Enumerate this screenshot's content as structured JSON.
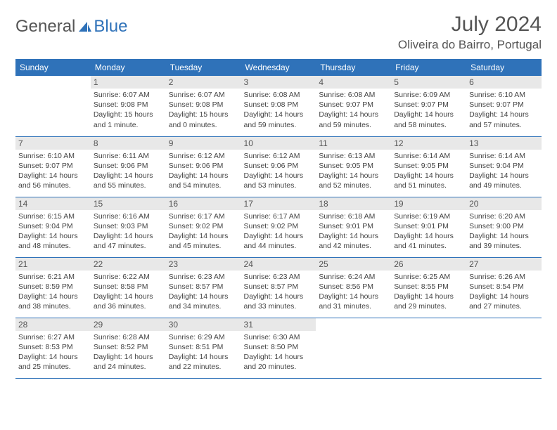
{
  "brand": {
    "name1": "General",
    "name2": "Blue"
  },
  "title": {
    "month": "July 2024",
    "location": "Oliveira do Bairro, Portugal"
  },
  "colors": {
    "accent": "#2f72b9",
    "daybar": "#e8e8e8",
    "text": "#555"
  },
  "days_of_week": [
    "Sunday",
    "Monday",
    "Tuesday",
    "Wednesday",
    "Thursday",
    "Friday",
    "Saturday"
  ],
  "weeks": [
    [
      {
        "n": "",
        "sr": "",
        "ss": "",
        "dl": ""
      },
      {
        "n": "1",
        "sr": "Sunrise: 6:07 AM",
        "ss": "Sunset: 9:08 PM",
        "dl": "Daylight: 15 hours and 1 minute."
      },
      {
        "n": "2",
        "sr": "Sunrise: 6:07 AM",
        "ss": "Sunset: 9:08 PM",
        "dl": "Daylight: 15 hours and 0 minutes."
      },
      {
        "n": "3",
        "sr": "Sunrise: 6:08 AM",
        "ss": "Sunset: 9:08 PM",
        "dl": "Daylight: 14 hours and 59 minutes."
      },
      {
        "n": "4",
        "sr": "Sunrise: 6:08 AM",
        "ss": "Sunset: 9:07 PM",
        "dl": "Daylight: 14 hours and 59 minutes."
      },
      {
        "n": "5",
        "sr": "Sunrise: 6:09 AM",
        "ss": "Sunset: 9:07 PM",
        "dl": "Daylight: 14 hours and 58 minutes."
      },
      {
        "n": "6",
        "sr": "Sunrise: 6:10 AM",
        "ss": "Sunset: 9:07 PM",
        "dl": "Daylight: 14 hours and 57 minutes."
      }
    ],
    [
      {
        "n": "7",
        "sr": "Sunrise: 6:10 AM",
        "ss": "Sunset: 9:07 PM",
        "dl": "Daylight: 14 hours and 56 minutes."
      },
      {
        "n": "8",
        "sr": "Sunrise: 6:11 AM",
        "ss": "Sunset: 9:06 PM",
        "dl": "Daylight: 14 hours and 55 minutes."
      },
      {
        "n": "9",
        "sr": "Sunrise: 6:12 AM",
        "ss": "Sunset: 9:06 PM",
        "dl": "Daylight: 14 hours and 54 minutes."
      },
      {
        "n": "10",
        "sr": "Sunrise: 6:12 AM",
        "ss": "Sunset: 9:06 PM",
        "dl": "Daylight: 14 hours and 53 minutes."
      },
      {
        "n": "11",
        "sr": "Sunrise: 6:13 AM",
        "ss": "Sunset: 9:05 PM",
        "dl": "Daylight: 14 hours and 52 minutes."
      },
      {
        "n": "12",
        "sr": "Sunrise: 6:14 AM",
        "ss": "Sunset: 9:05 PM",
        "dl": "Daylight: 14 hours and 51 minutes."
      },
      {
        "n": "13",
        "sr": "Sunrise: 6:14 AM",
        "ss": "Sunset: 9:04 PM",
        "dl": "Daylight: 14 hours and 49 minutes."
      }
    ],
    [
      {
        "n": "14",
        "sr": "Sunrise: 6:15 AM",
        "ss": "Sunset: 9:04 PM",
        "dl": "Daylight: 14 hours and 48 minutes."
      },
      {
        "n": "15",
        "sr": "Sunrise: 6:16 AM",
        "ss": "Sunset: 9:03 PM",
        "dl": "Daylight: 14 hours and 47 minutes."
      },
      {
        "n": "16",
        "sr": "Sunrise: 6:17 AM",
        "ss": "Sunset: 9:02 PM",
        "dl": "Daylight: 14 hours and 45 minutes."
      },
      {
        "n": "17",
        "sr": "Sunrise: 6:17 AM",
        "ss": "Sunset: 9:02 PM",
        "dl": "Daylight: 14 hours and 44 minutes."
      },
      {
        "n": "18",
        "sr": "Sunrise: 6:18 AM",
        "ss": "Sunset: 9:01 PM",
        "dl": "Daylight: 14 hours and 42 minutes."
      },
      {
        "n": "19",
        "sr": "Sunrise: 6:19 AM",
        "ss": "Sunset: 9:01 PM",
        "dl": "Daylight: 14 hours and 41 minutes."
      },
      {
        "n": "20",
        "sr": "Sunrise: 6:20 AM",
        "ss": "Sunset: 9:00 PM",
        "dl": "Daylight: 14 hours and 39 minutes."
      }
    ],
    [
      {
        "n": "21",
        "sr": "Sunrise: 6:21 AM",
        "ss": "Sunset: 8:59 PM",
        "dl": "Daylight: 14 hours and 38 minutes."
      },
      {
        "n": "22",
        "sr": "Sunrise: 6:22 AM",
        "ss": "Sunset: 8:58 PM",
        "dl": "Daylight: 14 hours and 36 minutes."
      },
      {
        "n": "23",
        "sr": "Sunrise: 6:23 AM",
        "ss": "Sunset: 8:57 PM",
        "dl": "Daylight: 14 hours and 34 minutes."
      },
      {
        "n": "24",
        "sr": "Sunrise: 6:23 AM",
        "ss": "Sunset: 8:57 PM",
        "dl": "Daylight: 14 hours and 33 minutes."
      },
      {
        "n": "25",
        "sr": "Sunrise: 6:24 AM",
        "ss": "Sunset: 8:56 PM",
        "dl": "Daylight: 14 hours and 31 minutes."
      },
      {
        "n": "26",
        "sr": "Sunrise: 6:25 AM",
        "ss": "Sunset: 8:55 PM",
        "dl": "Daylight: 14 hours and 29 minutes."
      },
      {
        "n": "27",
        "sr": "Sunrise: 6:26 AM",
        "ss": "Sunset: 8:54 PM",
        "dl": "Daylight: 14 hours and 27 minutes."
      }
    ],
    [
      {
        "n": "28",
        "sr": "Sunrise: 6:27 AM",
        "ss": "Sunset: 8:53 PM",
        "dl": "Daylight: 14 hours and 25 minutes."
      },
      {
        "n": "29",
        "sr": "Sunrise: 6:28 AM",
        "ss": "Sunset: 8:52 PM",
        "dl": "Daylight: 14 hours and 24 minutes."
      },
      {
        "n": "30",
        "sr": "Sunrise: 6:29 AM",
        "ss": "Sunset: 8:51 PM",
        "dl": "Daylight: 14 hours and 22 minutes."
      },
      {
        "n": "31",
        "sr": "Sunrise: 6:30 AM",
        "ss": "Sunset: 8:50 PM",
        "dl": "Daylight: 14 hours and 20 minutes."
      },
      {
        "n": "",
        "sr": "",
        "ss": "",
        "dl": ""
      },
      {
        "n": "",
        "sr": "",
        "ss": "",
        "dl": ""
      },
      {
        "n": "",
        "sr": "",
        "ss": "",
        "dl": ""
      }
    ]
  ]
}
